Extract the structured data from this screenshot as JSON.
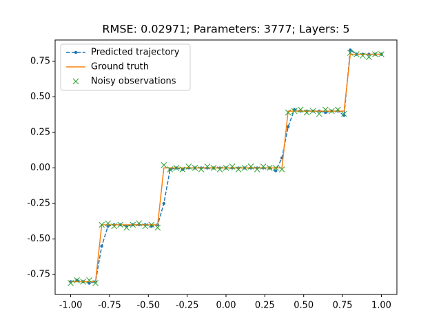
{
  "chart_data": {
    "type": "line",
    "title": "RMSE: 0.02971; Parameters: 3777; Layers: 5",
    "x": [
      -1.0,
      -0.96,
      -0.92,
      -0.88,
      -0.84,
      -0.8,
      -0.76,
      -0.72,
      -0.68,
      -0.64,
      -0.6,
      -0.56,
      -0.52,
      -0.48,
      -0.44,
      -0.4,
      -0.36,
      -0.32,
      -0.28,
      -0.24,
      -0.2,
      -0.16,
      -0.12,
      -0.08,
      -0.04,
      0.0,
      0.04,
      0.08,
      0.12,
      0.16,
      0.2,
      0.24,
      0.28,
      0.32,
      0.36,
      0.4,
      0.44,
      0.48,
      0.52,
      0.56,
      0.6,
      0.64,
      0.68,
      0.72,
      0.76,
      0.8,
      0.84,
      0.88,
      0.92,
      0.96,
      1.0
    ],
    "series": [
      {
        "name": "Predicted trajectory",
        "color": "#1f77b4",
        "linestyle": "dashed",
        "marker": "dot",
        "values": [
          -0.8,
          -0.79,
          -0.8,
          -0.81,
          -0.8,
          -0.55,
          -0.41,
          -0.4,
          -0.4,
          -0.41,
          -0.4,
          -0.4,
          -0.4,
          -0.41,
          -0.4,
          -0.25,
          -0.01,
          0.0,
          -0.01,
          0.0,
          0.0,
          0.0,
          0.0,
          0.0,
          0.0,
          0.0,
          0.0,
          0.0,
          0.0,
          0.0,
          0.0,
          0.0,
          0.0,
          -0.02,
          0.07,
          0.29,
          0.41,
          0.4,
          0.4,
          0.4,
          0.4,
          0.39,
          0.4,
          0.4,
          0.37,
          0.83,
          0.8,
          0.8,
          0.8,
          0.8,
          0.8
        ]
      },
      {
        "name": "Ground truth",
        "color": "#ff7f0e",
        "linestyle": "solid",
        "marker": "none",
        "values": [
          -0.8,
          -0.8,
          -0.8,
          -0.8,
          -0.8,
          -0.4,
          -0.4,
          -0.4,
          -0.4,
          -0.4,
          -0.4,
          -0.4,
          -0.4,
          -0.4,
          -0.4,
          0,
          0,
          0,
          0,
          0,
          0,
          0,
          0,
          0,
          0,
          0,
          0,
          0,
          0,
          0,
          0,
          0,
          0,
          0,
          0,
          0.4,
          0.4,
          0.4,
          0.4,
          0.4,
          0.4,
          0.4,
          0.4,
          0.4,
          0.4,
          0.8,
          0.8,
          0.8,
          0.8,
          0.8,
          0.8
        ]
      },
      {
        "name": "Noisy observations",
        "color": "#2ca02c",
        "linestyle": "none",
        "marker": "x",
        "values": [
          -0.81,
          -0.79,
          -0.8,
          -0.79,
          -0.81,
          -0.4,
          -0.39,
          -0.41,
          -0.4,
          -0.42,
          -0.4,
          -0.39,
          -0.41,
          -0.4,
          -0.42,
          0.02,
          -0.01,
          0.0,
          -0.01,
          0.01,
          0.0,
          -0.01,
          0.01,
          0.0,
          -0.01,
          0.0,
          0.01,
          -0.01,
          0.0,
          0.01,
          -0.01,
          0.01,
          0.0,
          0.0,
          -0.01,
          0.39,
          0.4,
          0.41,
          0.39,
          0.4,
          0.38,
          0.41,
          0.4,
          0.41,
          0.38,
          0.81,
          0.8,
          0.79,
          0.78,
          0.8,
          0.8
        ]
      }
    ],
    "xlim": [
      -1.1,
      1.1
    ],
    "ylim": [
      -0.89,
      0.9
    ],
    "xticks": [
      {
        "value": -1,
        "label": "-1.00"
      },
      {
        "value": -0.75,
        "label": "-0.75"
      },
      {
        "value": -0.5,
        "label": "-0.50"
      },
      {
        "value": -0.25,
        "label": "-0.25"
      },
      {
        "value": 0,
        "label": "0.00"
      },
      {
        "value": 0.25,
        "label": "0.25"
      },
      {
        "value": 0.5,
        "label": "0.50"
      },
      {
        "value": 0.75,
        "label": "0.75"
      },
      {
        "value": 1,
        "label": "1.00"
      }
    ],
    "yticks": [
      {
        "value": -0.75,
        "label": "-0.75"
      },
      {
        "value": -0.5,
        "label": "-0.50"
      },
      {
        "value": -0.25,
        "label": "-0.25"
      },
      {
        "value": 0,
        "label": "0.00"
      },
      {
        "value": 0.25,
        "label": "0.25"
      },
      {
        "value": 0.5,
        "label": "0.50"
      },
      {
        "value": 0.75,
        "label": "0.75"
      }
    ],
    "grid": false,
    "legend": "upper left"
  }
}
